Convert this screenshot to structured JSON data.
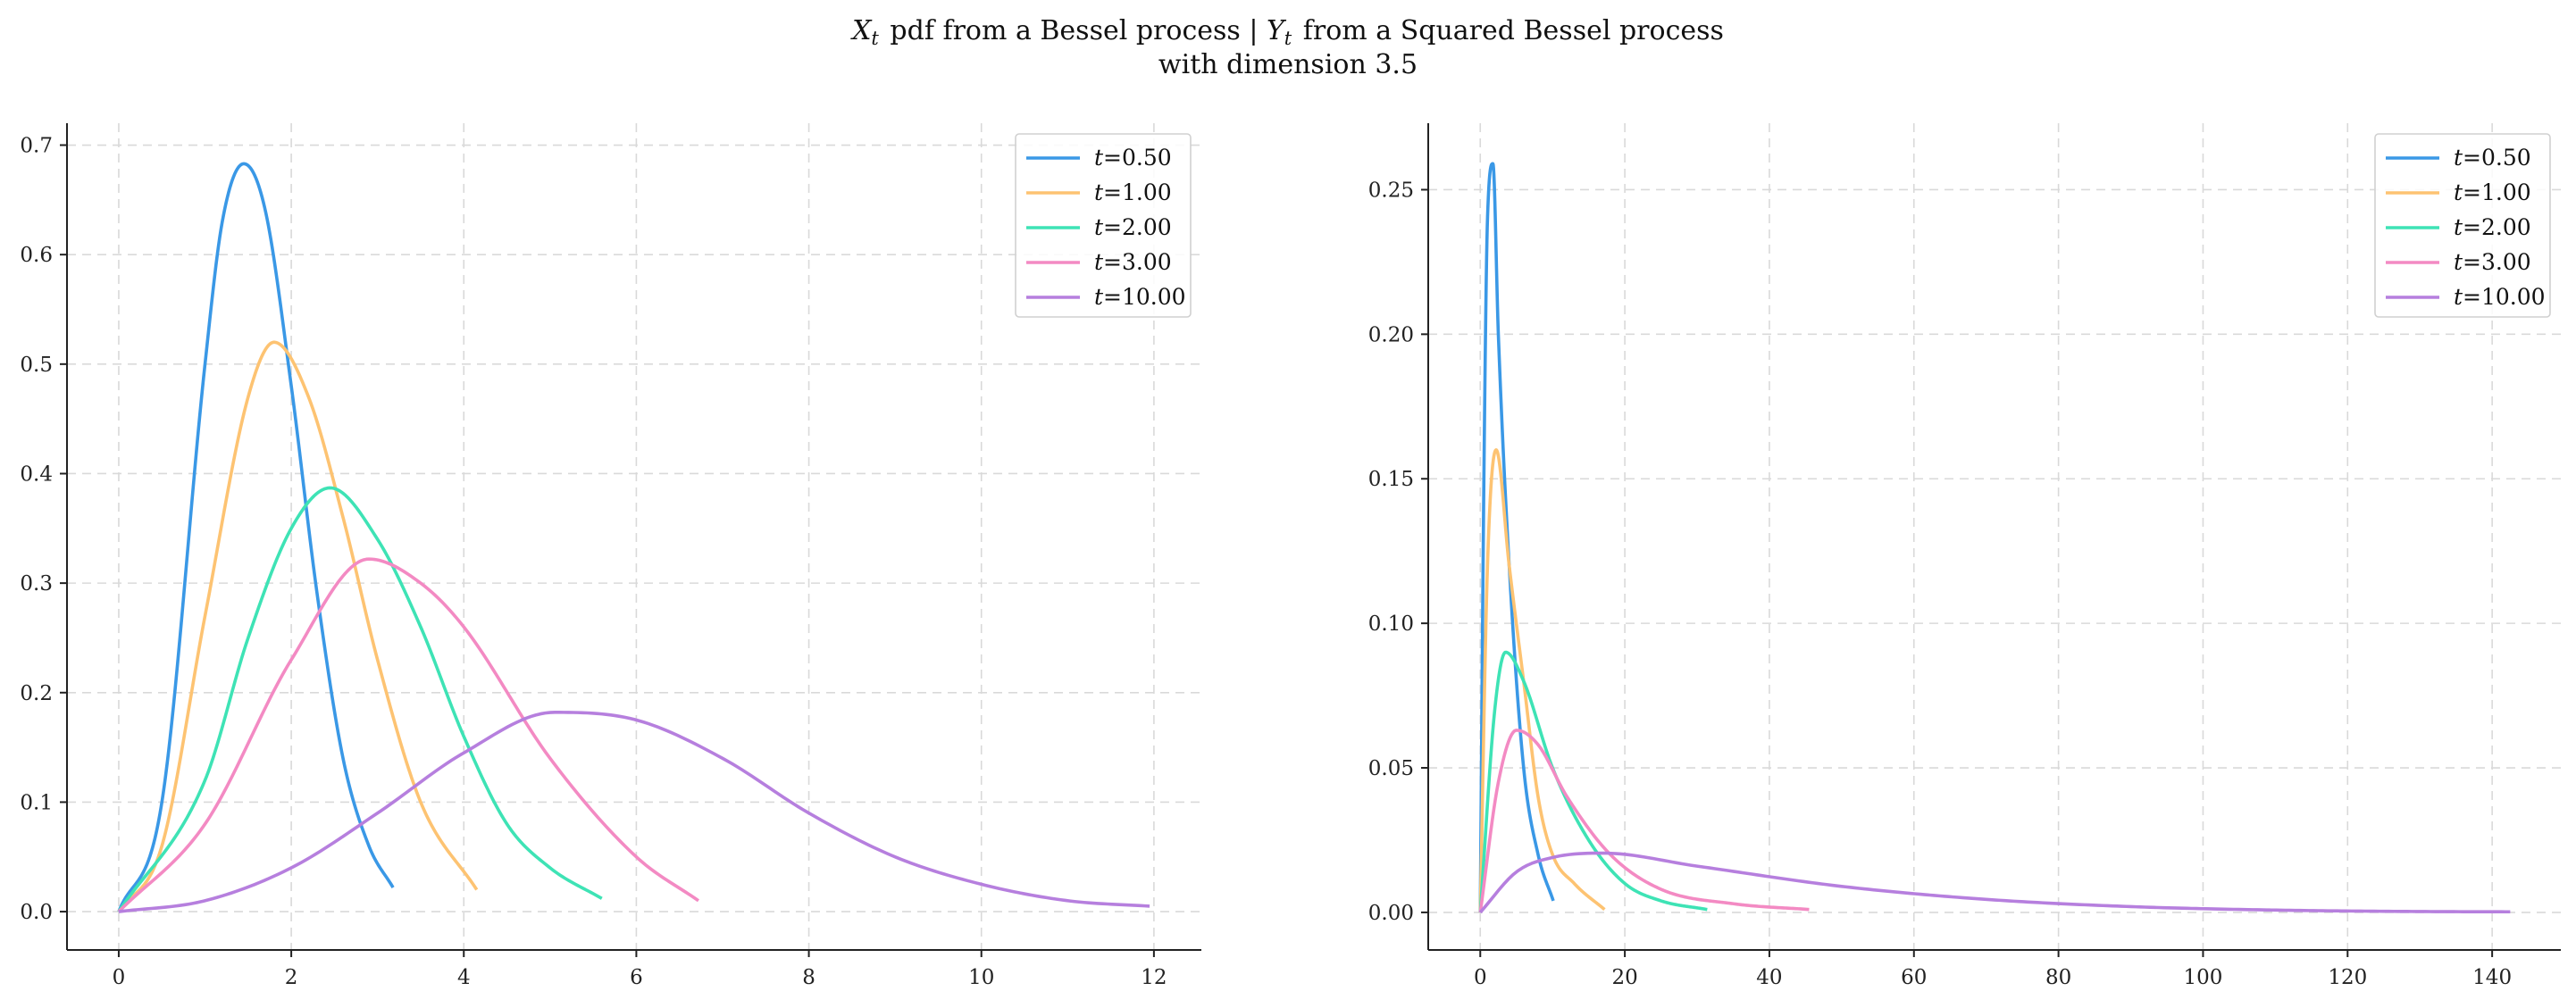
{
  "figure": {
    "title_line1": "X_t pdf from a Bessel process | Y_t from a Squared Bessel process",
    "title_line2": "with dimension 3.5"
  },
  "colors": {
    "t050": "#3a98e6",
    "t100": "#fdc372",
    "t200": "#3ee3b5",
    "t300": "#f38ac3",
    "t1000": "#b67fde"
  },
  "chart_data": [
    {
      "type": "line",
      "subplot": "left",
      "description_of_variable": "X_t density",
      "xlabel": "",
      "ylabel": "",
      "xlim": [
        -0.6,
        12.55
      ],
      "ylim": [
        -0.035,
        0.72
      ],
      "xticks": [
        0,
        2,
        4,
        6,
        8,
        10,
        12
      ],
      "yticks": [
        0.0,
        0.1,
        0.2,
        0.3,
        0.4,
        0.5,
        0.6,
        0.7
      ],
      "xtick_labels": [
        "0",
        "2",
        "4",
        "6",
        "8",
        "10",
        "12"
      ],
      "ytick_labels": [
        "0.0",
        "0.1",
        "0.2",
        "0.3",
        "0.4",
        "0.5",
        "0.6",
        "0.7"
      ],
      "grid": true,
      "legend_position": "top-right",
      "series": [
        {
          "name": "t=0.50",
          "t": 0.5,
          "x_max": 3.18,
          "color_key": "t050",
          "x": [
            0,
            0.5,
            1.0,
            1.2,
            1.45,
            1.7,
            2.0,
            2.3,
            2.6,
            2.9,
            3.18
          ],
          "y": [
            0,
            0.1,
            0.5,
            0.63,
            0.683,
            0.64,
            0.48,
            0.29,
            0.14,
            0.06,
            0.022
          ]
        },
        {
          "name": "t=1.00",
          "t": 1.0,
          "x_max": 4.15,
          "color_key": "t100",
          "x": [
            0,
            0.5,
            1.0,
            1.5,
            1.8,
            2.2,
            2.6,
            3.0,
            3.5,
            4.15
          ],
          "y": [
            0,
            0.06,
            0.27,
            0.47,
            0.52,
            0.47,
            0.36,
            0.23,
            0.1,
            0.02
          ]
        },
        {
          "name": "t=2.00",
          "t": 2.0,
          "x_max": 5.6,
          "color_key": "t200",
          "x": [
            0,
            1.0,
            1.5,
            2.0,
            2.45,
            3.0,
            3.5,
            4.0,
            4.5,
            5.0,
            5.6
          ],
          "y": [
            0,
            0.12,
            0.25,
            0.35,
            0.387,
            0.34,
            0.26,
            0.16,
            0.08,
            0.04,
            0.012
          ]
        },
        {
          "name": "t=3.00",
          "t": 3.0,
          "x_max": 6.72,
          "color_key": "t300",
          "x": [
            0,
            1.0,
            2.0,
            2.9,
            3.5,
            4.0,
            5.0,
            6.0,
            6.72
          ],
          "y": [
            0,
            0.08,
            0.23,
            0.322,
            0.3,
            0.26,
            0.14,
            0.05,
            0.01
          ]
        },
        {
          "name": "t=10.00",
          "t": 10.0,
          "x_max": 11.95,
          "color_key": "t1000",
          "x": [
            0,
            1.0,
            2.0,
            3.0,
            4.0,
            5.05,
            6.0,
            7.0,
            8.0,
            9.0,
            10.0,
            11.0,
            11.95
          ],
          "y": [
            0,
            0.01,
            0.04,
            0.09,
            0.145,
            0.182,
            0.175,
            0.14,
            0.09,
            0.05,
            0.025,
            0.01,
            0.005
          ]
        }
      ]
    },
    {
      "type": "line",
      "subplot": "right",
      "description_of_variable": "Y_t density",
      "xlabel": "",
      "ylabel": "",
      "xlim": [
        -7.2,
        149.5
      ],
      "ylim": [
        -0.013,
        0.273
      ],
      "xticks": [
        0,
        20,
        40,
        60,
        80,
        100,
        120,
        140
      ],
      "yticks": [
        0.0,
        0.05,
        0.1,
        0.15,
        0.2,
        0.25
      ],
      "xtick_labels": [
        "0",
        "20",
        "40",
        "60",
        "80",
        "100",
        "120",
        "140"
      ],
      "ytick_labels": [
        "0.00",
        "0.05",
        "0.10",
        "0.15",
        "0.20",
        "0.25"
      ],
      "grid": true,
      "legend_position": "top-right",
      "series": [
        {
          "name": "t=0.50",
          "t": 0.5,
          "x_max": 10.1,
          "color_key": "t050",
          "x": [
            0,
            0.5,
            1.0,
            1.75,
            2.5,
            4.0,
            6.0,
            8.0,
            10.1
          ],
          "y": [
            0,
            0.15,
            0.24,
            0.259,
            0.2,
            0.12,
            0.05,
            0.02,
            0.004
          ]
        },
        {
          "name": "t=1.00",
          "t": 1.0,
          "x_max": 17.2,
          "color_key": "t100",
          "x": [
            0,
            1.0,
            2.2,
            4.0,
            6.0,
            8.0,
            10.0,
            13.0,
            17.2
          ],
          "y": [
            0,
            0.12,
            0.16,
            0.12,
            0.08,
            0.04,
            0.02,
            0.01,
            0.001
          ]
        },
        {
          "name": "t=2.00",
          "t": 2.0,
          "x_max": 31.4,
          "color_key": "t200",
          "x": [
            0,
            2.0,
            3.5,
            6.0,
            10.0,
            15.0,
            20.0,
            25.0,
            31.4
          ],
          "y": [
            0,
            0.07,
            0.09,
            0.08,
            0.05,
            0.025,
            0.01,
            0.004,
            0.001
          ]
        },
        {
          "name": "t=3.00",
          "t": 3.0,
          "x_max": 45.5,
          "color_key": "t300",
          "x": [
            0,
            2.5,
            5.0,
            8.0,
            12.0,
            18.0,
            25.0,
            35.0,
            45.5
          ],
          "y": [
            0,
            0.045,
            0.063,
            0.058,
            0.04,
            0.02,
            0.008,
            0.003,
            0.001
          ]
        },
        {
          "name": "t=10.00",
          "t": 10.0,
          "x_max": 142.5,
          "color_key": "t1000",
          "x": [
            0,
            5.0,
            10.0,
            17.0,
            30.0,
            50.0,
            70.0,
            90.0,
            110.0,
            130.0,
            142.5
          ],
          "y": [
            0,
            0.014,
            0.019,
            0.0205,
            0.016,
            0.009,
            0.0045,
            0.002,
            0.0008,
            0.0003,
            0.0002
          ]
        }
      ]
    }
  ]
}
